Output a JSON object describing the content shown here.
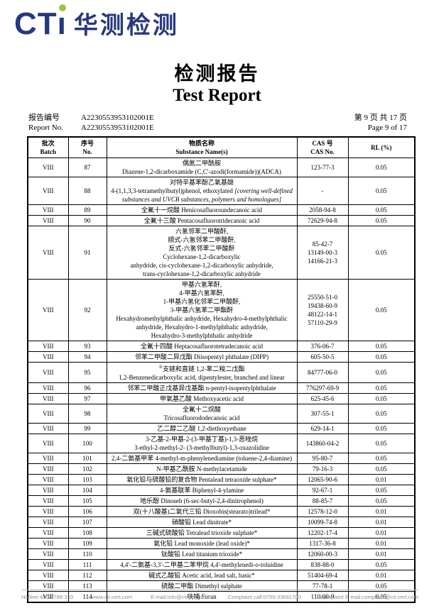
{
  "logo": {
    "cti": "CT",
    "cti_i": "ı",
    "cn": "华测检测",
    "navy": "#27397d",
    "green": "#9bc53d"
  },
  "title": {
    "cn": "检测报告",
    "en": "Test Report"
  },
  "report": {
    "label_cn": "报告编号",
    "label_en": "Report No.",
    "no_line1": "A2230553953102001E",
    "no_line2": "A2230553953102001E",
    "page_cn": "第 9 页 共 17 页",
    "page_en": "Page 9 of 17"
  },
  "table": {
    "columns": {
      "batch_cn": "批次",
      "batch_en": "Batch",
      "no_cn": "序号",
      "no_en": "No.",
      "name_cn": "物质名称",
      "name_en": "Substance Name(s)",
      "cas_cn": "CAS 号",
      "cas_en": "CAS No.",
      "rl": "RL (%)"
    },
    "rows": [
      {
        "batch": "VIII",
        "no": "87",
        "name": [
          "偶氮二甲酰胺",
          "Diazene-1,2-dicarboxamide (C,C'-azodi(formamide))(ADCA)"
        ],
        "cas": [
          "123-77-3"
        ],
        "rl": "0.05"
      },
      {
        "batch": "VIII",
        "no": "88",
        "name": [
          "对特辛基苯酚乙氧基醚",
          [
            {
              "t": "4-(1,1,3,3-tetramethylbutyl)phenol, ethoxylated "
            },
            {
              "t": "[covering well-defined",
              "style": "italic"
            }
          ],
          [
            {
              "t": "substances and UVCB substances, polymers and homologues]",
              "style": "italic"
            }
          ]
        ],
        "cas": [
          "-"
        ],
        "rl": "0.05"
      },
      {
        "batch": "VIII",
        "no": "89",
        "name": [
          "全氟十一烷酸 Henicosafluoroundecanoic acid"
        ],
        "cas": [
          "2058-94-8"
        ],
        "rl": "0.05"
      },
      {
        "batch": "VIII",
        "no": "90",
        "name": [
          "全氟十三酸 Pentacosafluorotridecanoic acid"
        ],
        "cas": [
          "72629-94-8"
        ],
        "rl": "0.05"
      },
      {
        "batch": "VIII",
        "no": "91",
        "name": [
          "六氢邻苯二甲酸酐,",
          "顺式-六氢邻苯二甲酸酐,",
          "反式-六氢邻苯二甲酸酐",
          "Cyclohexane-1,2-dicarboxylic",
          "anhydride, cis-cyclohexane-1,2-dicarboxylic anhydride,",
          "trans-cyclohexane-1,2-dicarboxylic anhydride"
        ],
        "cas": [
          "85-42-7",
          "13149-00-3",
          "14166-21-3"
        ],
        "rl": "0.05"
      },
      {
        "batch": "VIII",
        "no": "92",
        "name": [
          "甲基六氢苯酐,",
          "4-甲基六氢苯酐,",
          "1-甲基六氢化邻苯二甲酸酐,",
          "3-甲基六氢苯二甲酯酐",
          "Hexahydromethylphthalic anhydride, Hexahydro-4-methylphthalic",
          "anhydride, Hexahydro-1-methylphthalic anhydride,",
          "Hexahydro-3-methylphthalic anhydride"
        ],
        "cas": [
          "25550-51-0",
          "19438-60-9",
          "48122-14-1",
          "57110-29-9"
        ],
        "rl": "0.05"
      },
      {
        "batch": "VIII",
        "no": "93",
        "name": [
          "全氟十四酸 Heptacosafluorotetradecanoic acid"
        ],
        "cas": [
          "376-06-7"
        ],
        "rl": "0.05"
      },
      {
        "batch": "VIII",
        "no": "94",
        "name": [
          "邻苯二甲酸二异戊酯 Diisopentyl phthalate (DIPP)"
        ],
        "cas": [
          "605-50-5"
        ],
        "rl": "0.05"
      },
      {
        "batch": "VIII",
        "no": "95",
        "name": [
          [
            {
              "t": "①",
              "style": "sup"
            },
            {
              "t": "支链和直链 1,2-苯二羧二戊酯"
            }
          ],
          "1,2-Benzenedicarboxylic acid, dipentylester, branched and linear"
        ],
        "cas": [
          "84777-06-0"
        ],
        "rl": "0.05"
      },
      {
        "batch": "VIII",
        "no": "96",
        "name": [
          "邻苯二甲酸正戊基异戊基酯 n-pentyl-isopentylphthalate"
        ],
        "cas": [
          "776297-69-9"
        ],
        "rl": "0.05"
      },
      {
        "batch": "VIII",
        "no": "97",
        "name": [
          "甲氧基乙酸 Methoxyacetic acid"
        ],
        "cas": [
          "625-45-6"
        ],
        "rl": "0.05"
      },
      {
        "batch": "VIII",
        "no": "98",
        "name": [
          "全氟十二烷酸",
          "Tricosafluorododecanoic acid"
        ],
        "cas": [
          "307-55-1"
        ],
        "rl": "0.05"
      },
      {
        "batch": "VIII",
        "no": "99",
        "name": [
          "乙二醇二乙醚 1,2-diethoxyethane"
        ],
        "cas": [
          "629-14-1"
        ],
        "rl": "0.05"
      },
      {
        "batch": "VIII",
        "no": "100",
        "name": [
          "3-乙基-2-甲基-2-(3-甲基丁基)-1,3-恶唑烷",
          "3-ethyl-2-methyl-2- (3-methylbutyl)-1,3-oxazolidine"
        ],
        "cas": [
          "143860-04-2"
        ],
        "rl": "0.05"
      },
      {
        "batch": "VIII",
        "no": "101",
        "name": [
          "2,4-二氨基甲苯 4-methyl-m-phenylenediamine (toluene-2,4-diamine)"
        ],
        "cas": [
          "95-80-7"
        ],
        "rl": "0.05"
      },
      {
        "batch": "VIII",
        "no": "102",
        "name": [
          "N-甲基乙酰胺 N-methylacetamide"
        ],
        "cas": [
          "79-16-3"
        ],
        "rl": "0.05"
      },
      {
        "batch": "VIII",
        "no": "103",
        "name": [
          "氧化铅与硫酸铅的复合物 Pentalead tetraoxide sulphate*"
        ],
        "cas": [
          "12065-90-6"
        ],
        "rl": "0.01"
      },
      {
        "batch": "VIII",
        "no": "104",
        "name": [
          "4-氨基联苯 Biphenyl-4-ylamine"
        ],
        "cas": [
          "92-67-1"
        ],
        "rl": "0.05"
      },
      {
        "batch": "VIII",
        "no": "105",
        "name": [
          "地乐酚 Dinoseb (6-sec-butyl-2,4-dinitrophenol)"
        ],
        "cas": [
          "88-85-7"
        ],
        "rl": "0.05"
      },
      {
        "batch": "VIII",
        "no": "106",
        "name": [
          "双(十八酸基)二氧代三铅 Dioxobis(stearato)trilead*"
        ],
        "cas": [
          "12578-12-0"
        ],
        "rl": "0.01"
      },
      {
        "batch": "VIII",
        "no": "107",
        "name": [
          "硝酸铅 Lead dinitrate*"
        ],
        "cas": [
          "10099-74-8"
        ],
        "rl": "0.01"
      },
      {
        "batch": "VIII",
        "no": "108",
        "name": [
          "三碱式硫酸铅 Tetralead trioxide sulphate*"
        ],
        "cas": [
          "12202-17-4"
        ],
        "rl": "0.01"
      },
      {
        "batch": "VIII",
        "no": "109",
        "name": [
          "氧化铅 Lead monoxide (lead oxide)*"
        ],
        "cas": [
          "1317-36-8"
        ],
        "rl": "0.01"
      },
      {
        "batch": "VIII",
        "no": "110",
        "name": [
          "钛酸铅 Lead titanium trioxide*"
        ],
        "cas": [
          "12060-00-3"
        ],
        "rl": "0.01"
      },
      {
        "batch": "VIII",
        "no": "111",
        "name": [
          "4,4'-二氨基-3,3'-二甲基二苯甲烷 4,4'-methylenedi-o-toluidine"
        ],
        "cas": [
          "838-88-0"
        ],
        "rl": "0.05"
      },
      {
        "batch": "VIII",
        "no": "112",
        "name": [
          "碱式乙酸铅 Acetic acid, lead salt, basic*"
        ],
        "cas": [
          "51404-69-4"
        ],
        "rl": "0.01"
      },
      {
        "batch": "VIII",
        "no": "113",
        "name": [
          "硫酸二甲酯 Dimethyl sulphate"
        ],
        "cas": [
          "77-78-1"
        ],
        "rl": "0.05"
      },
      {
        "batch": "VIII",
        "no": "114",
        "name": [
          "呋喃 Furan"
        ],
        "cas": [
          "110-00-9"
        ],
        "rl": "0.05"
      }
    ]
  },
  "footer": {
    "items": [
      "Hotline:400-6788-333",
      "www.cti-cert.com",
      "E-mail:info@cti-cert.com",
      "Complaint call:0755-33681700",
      "Complaint E-mail:complaint@cti-cert.com"
    ]
  }
}
